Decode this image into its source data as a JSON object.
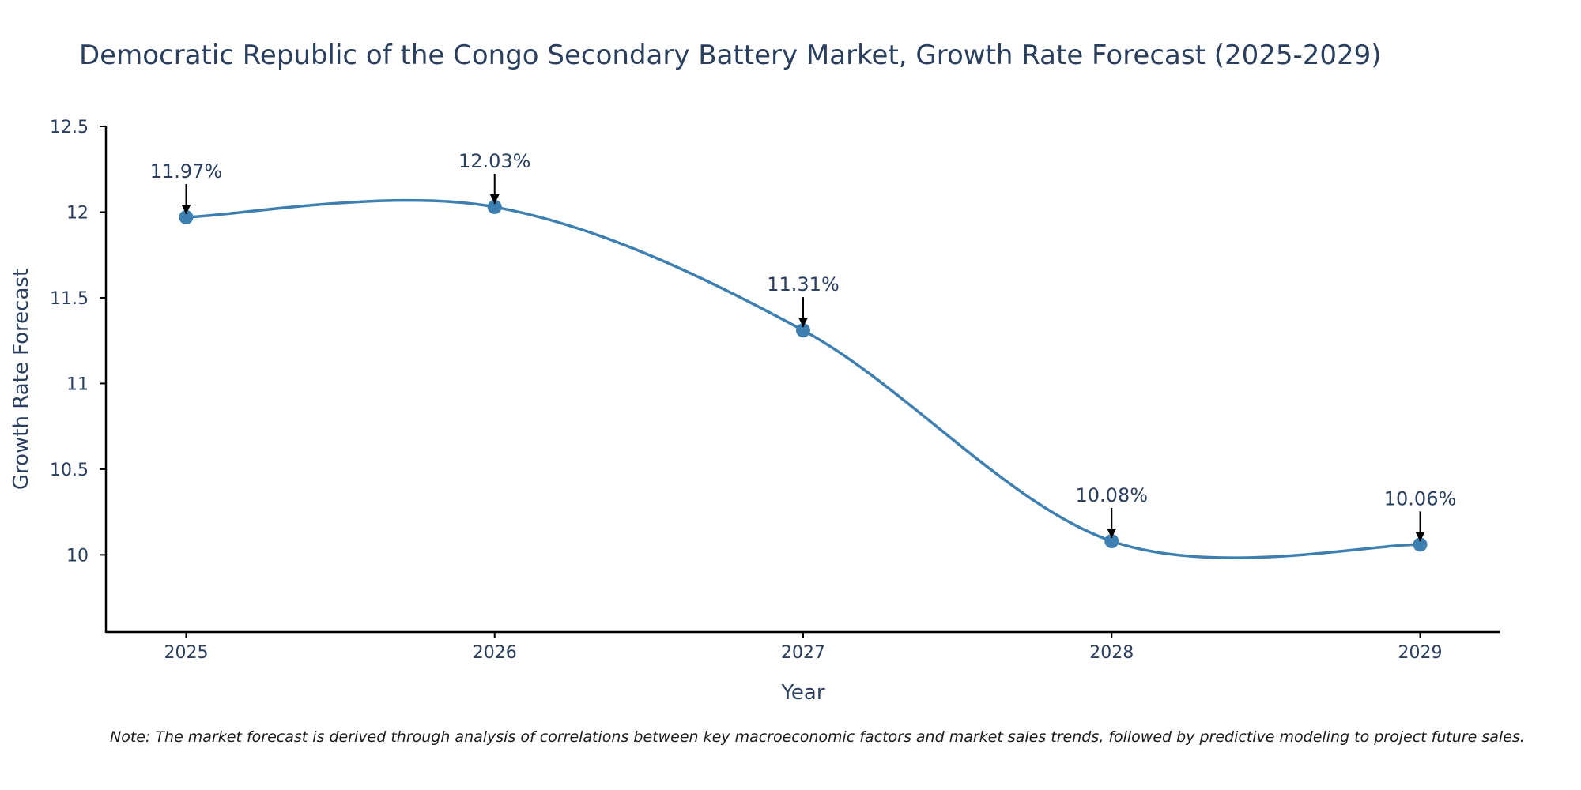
{
  "chart_data": {
    "type": "line",
    "title": "Democratic Republic of the Congo Secondary Battery Market, Growth Rate Forecast (2025-2029)",
    "xlabel": "Year",
    "ylabel": "Growth Rate Forecast",
    "categories": [
      "2025",
      "2026",
      "2027",
      "2028",
      "2029"
    ],
    "x": [
      2025,
      2026,
      2027,
      2028,
      2029
    ],
    "values": [
      11.97,
      12.03,
      11.31,
      10.08,
      10.06
    ],
    "data_labels": [
      "11.97%",
      "12.03%",
      "11.31%",
      "10.08%",
      "10.06%"
    ],
    "y_ticks": [
      10,
      10.5,
      11,
      11.5,
      12,
      12.5
    ],
    "y_tick_labels": [
      "10",
      "10.5",
      "11",
      "11.5",
      "12",
      "12.5"
    ],
    "ylim": [
      9.55,
      12.5
    ],
    "xlim": [
      2024.74,
      2029.26
    ],
    "grid": false,
    "line_shape": "spline",
    "line_color": "#3d7fb0",
    "marker_color": "#3d7fb0",
    "axis_color": "#000000",
    "note": "Note: The market forecast is derived through analysis of correlations between key macroeconomic factors and market sales trends, followed by predictive modeling to project future sales."
  }
}
